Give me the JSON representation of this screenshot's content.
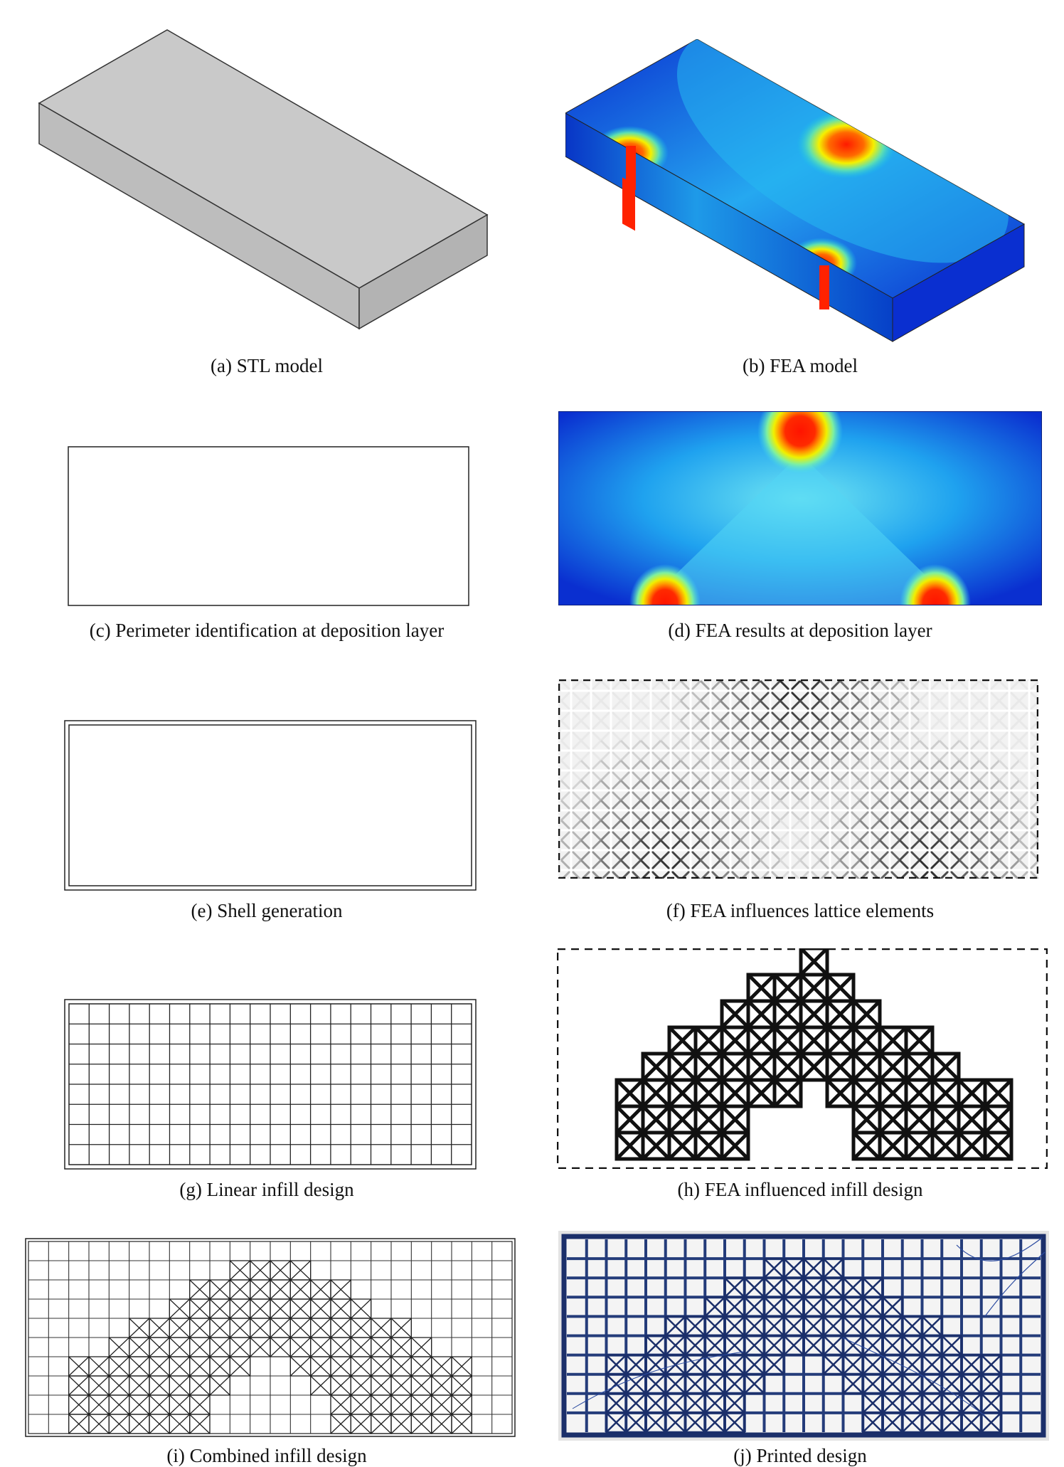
{
  "figure": {
    "panels": [
      {
        "id": "a",
        "caption": "(a) STL model"
      },
      {
        "id": "b",
        "caption": "(b) FEA model"
      },
      {
        "id": "c",
        "caption": "(c) Perimeter identification at deposition layer"
      },
      {
        "id": "d",
        "caption": "(d) FEA results at deposition layer"
      },
      {
        "id": "e",
        "caption": "(e) Shell generation"
      },
      {
        "id": "f",
        "caption": "(f) FEA influences lattice elements"
      },
      {
        "id": "g",
        "caption": "(g) Linear infill design"
      },
      {
        "id": "h",
        "caption": "(h) FEA influenced infill design"
      },
      {
        "id": "i",
        "caption": "(i) Combined infill design"
      },
      {
        "id": "j",
        "caption": "(j) Printed design"
      }
    ]
  },
  "colors": {
    "stl_top": "#c9c9c9",
    "stl_side": "#bdbdbd",
    "fea_low": "#0a2fd0",
    "fea_mid": "#16c3ee",
    "fea_hot": "#ff1a00",
    "lattice": "#111111",
    "printed_frame": "#1b2f6a",
    "printed_bg": "#f3f3f3"
  }
}
